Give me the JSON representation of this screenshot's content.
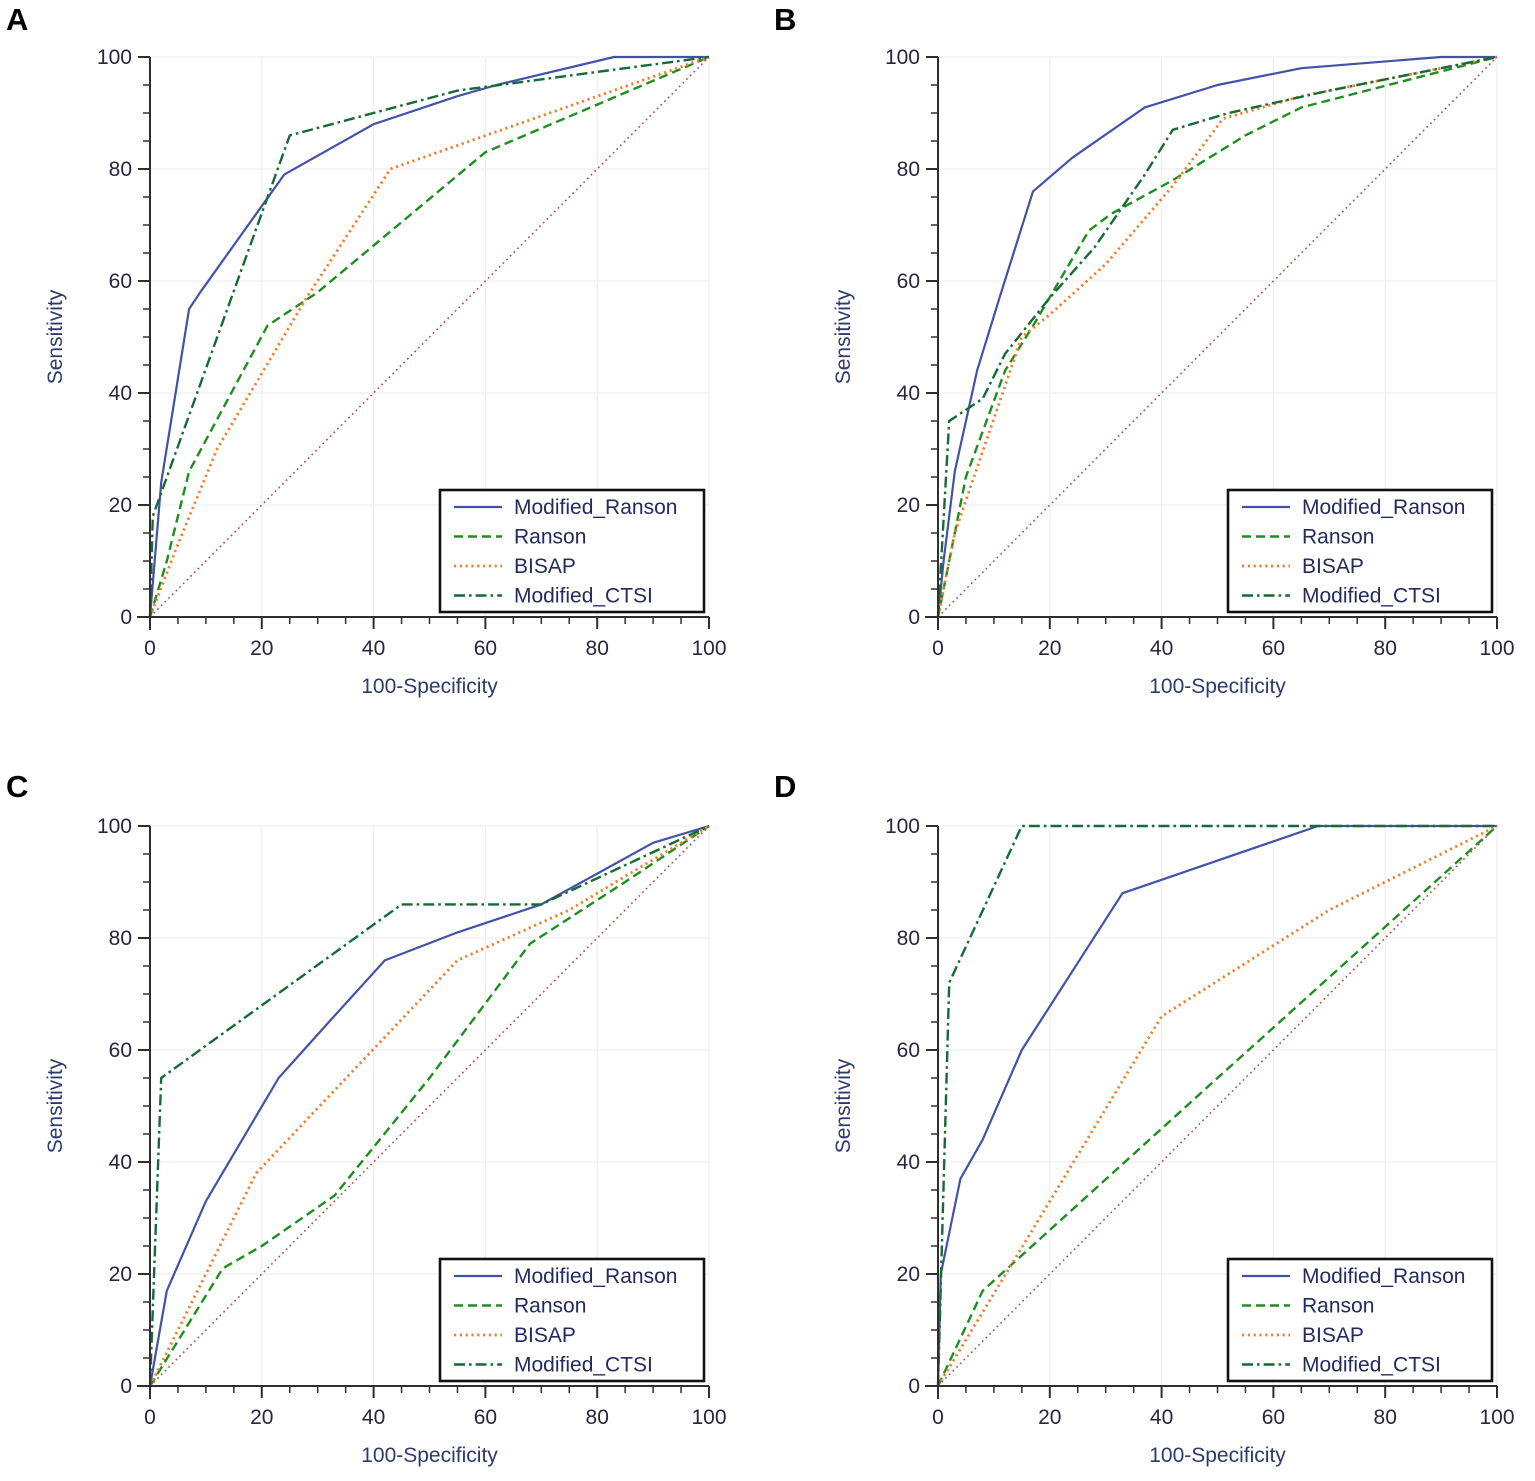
{
  "figure": {
    "description": "Four ROC curve panels comparing scoring systems",
    "background": "#ffffff"
  },
  "theme": {
    "axis_color": "#2f2f2f",
    "grid_color": "#efeef0",
    "tick_label_color": "#26263f",
    "axis_title_color": "#2e3a6e",
    "legend_text_color": "#232a5e",
    "legend_border_color": "#111111",
    "panel_label_color": "#000000",
    "modified_ranson_color": "#4252a8",
    "ranson_color": "#1e8e1e",
    "bisap_color": "#ef7f30",
    "modified_ctsi_color": "#156b33",
    "reference_color": "#ad5656"
  },
  "legend": {
    "items": [
      {
        "label": "Modified_Ranson",
        "style": "solid",
        "color": "#4252a8"
      },
      {
        "label": "Ranson",
        "style": "dashed",
        "color": "#1e8e1e"
      },
      {
        "label": "BISAP",
        "style": "dotted",
        "color": "#ef7f30"
      },
      {
        "label": "Modified_CTSI",
        "style": "dashdot",
        "color": "#156b33"
      }
    ]
  },
  "chart_data": [
    {
      "panel_label": "A",
      "type": "line",
      "xlabel": "100-Specificity",
      "ylabel": "Sensitivity",
      "xlim": [
        0,
        100
      ],
      "ylim": [
        0,
        100
      ],
      "x_major_ticks": [
        0,
        20,
        40,
        60,
        80,
        100
      ],
      "y_major_ticks": [
        0,
        20,
        40,
        60,
        80,
        100
      ],
      "minor_tick_step": 5,
      "grid": true,
      "legend_position": "lower-right",
      "series": [
        {
          "name": "Modified_Ranson",
          "style": "solid",
          "color": "#4252a8",
          "points": [
            [
              0,
              0
            ],
            [
              2,
              24
            ],
            [
              7,
              55
            ],
            [
              9,
              58
            ],
            [
              24,
              79
            ],
            [
              40,
              88
            ],
            [
              55,
              93
            ],
            [
              62,
              95
            ],
            [
              83,
              100
            ],
            [
              100,
              100
            ]
          ]
        },
        {
          "name": "Ranson",
          "style": "dashed",
          "color": "#1e8e1e",
          "points": [
            [
              0,
              0
            ],
            [
              3,
              10
            ],
            [
              7,
              26
            ],
            [
              21,
              52
            ],
            [
              30,
              58
            ],
            [
              60,
              83
            ],
            [
              100,
              100
            ]
          ]
        },
        {
          "name": "BISAP",
          "style": "dotted",
          "color": "#ef7f30",
          "points": [
            [
              0,
              0
            ],
            [
              5,
              13
            ],
            [
              12,
              30
            ],
            [
              28,
              57
            ],
            [
              43,
              80
            ],
            [
              100,
              100
            ]
          ]
        },
        {
          "name": "Modified_CTSI",
          "style": "dashdot",
          "color": "#156b33",
          "points": [
            [
              0,
              0
            ],
            [
              0.5,
              18
            ],
            [
              25,
              86
            ],
            [
              55,
              94
            ],
            [
              100,
              100
            ]
          ]
        },
        {
          "name": "reference",
          "style": "ref",
          "color": "#ad5656",
          "in_legend": false,
          "points": [
            [
              0,
              0
            ],
            [
              100,
              100
            ]
          ]
        }
      ]
    },
    {
      "panel_label": "B",
      "type": "line",
      "xlabel": "100-Specificity",
      "ylabel": "Sensitivity",
      "xlim": [
        0,
        100
      ],
      "ylim": [
        0,
        100
      ],
      "x_major_ticks": [
        0,
        20,
        40,
        60,
        80,
        100
      ],
      "y_major_ticks": [
        0,
        20,
        40,
        60,
        80,
        100
      ],
      "minor_tick_step": 5,
      "grid": true,
      "legend_position": "lower-right",
      "series": [
        {
          "name": "Modified_Ranson",
          "style": "solid",
          "color": "#4252a8",
          "points": [
            [
              0,
              0
            ],
            [
              1,
              10
            ],
            [
              3,
              26
            ],
            [
              7,
              44
            ],
            [
              11,
              57
            ],
            [
              17,
              76
            ],
            [
              24,
              82
            ],
            [
              37,
              91
            ],
            [
              50,
              95
            ],
            [
              65,
              98
            ],
            [
              90,
              100
            ],
            [
              100,
              100
            ]
          ]
        },
        {
          "name": "Ranson",
          "style": "dashed",
          "color": "#1e8e1e",
          "points": [
            [
              0,
              0
            ],
            [
              2,
              10
            ],
            [
              5,
              25
            ],
            [
              12,
              44
            ],
            [
              17,
              52
            ],
            [
              27,
              69
            ],
            [
              31,
              72
            ],
            [
              42,
              78
            ],
            [
              55,
              86
            ],
            [
              65,
              91
            ],
            [
              100,
              100
            ]
          ]
        },
        {
          "name": "BISAP",
          "style": "dotted",
          "color": "#ef7f30",
          "points": [
            [
              0,
              0
            ],
            [
              3,
              15
            ],
            [
              15,
              50
            ],
            [
              20,
              54
            ],
            [
              30,
              63
            ],
            [
              42,
              77
            ],
            [
              51,
              89
            ],
            [
              65,
              93
            ],
            [
              100,
              100
            ]
          ]
        },
        {
          "name": "Modified_CTSI",
          "style": "dashdot",
          "color": "#156b33",
          "points": [
            [
              0,
              0
            ],
            [
              2,
              35
            ],
            [
              8,
              39
            ],
            [
              12,
              47
            ],
            [
              20,
              57
            ],
            [
              28,
              66
            ],
            [
              37,
              79
            ],
            [
              42,
              87
            ],
            [
              52,
              90
            ],
            [
              70,
              94
            ],
            [
              100,
              100
            ]
          ]
        },
        {
          "name": "reference",
          "style": "ref",
          "color": "#ad5656",
          "in_legend": false,
          "points": [
            [
              0,
              0
            ],
            [
              100,
              100
            ]
          ]
        }
      ]
    },
    {
      "panel_label": "C",
      "type": "line",
      "xlabel": "100-Specificity",
      "ylabel": "Sensitivity",
      "xlim": [
        0,
        100
      ],
      "ylim": [
        0,
        100
      ],
      "x_major_ticks": [
        0,
        20,
        40,
        60,
        80,
        100
      ],
      "y_major_ticks": [
        0,
        20,
        40,
        60,
        80,
        100
      ],
      "minor_tick_step": 5,
      "grid": true,
      "legend_position": "lower-right",
      "series": [
        {
          "name": "Modified_Ranson",
          "style": "solid",
          "color": "#4252a8",
          "points": [
            [
              0,
              0
            ],
            [
              3,
              17
            ],
            [
              10,
              33
            ],
            [
              23,
              55
            ],
            [
              32,
              65
            ],
            [
              42,
              76
            ],
            [
              55,
              81
            ],
            [
              70,
              86
            ],
            [
              90,
              97
            ],
            [
              100,
              100
            ]
          ]
        },
        {
          "name": "Ranson",
          "style": "dashed",
          "color": "#1e8e1e",
          "points": [
            [
              0,
              0
            ],
            [
              13,
              21
            ],
            [
              20,
              25
            ],
            [
              33,
              34
            ],
            [
              50,
              55
            ],
            [
              68,
              79
            ],
            [
              85,
              90
            ],
            [
              100,
              100
            ]
          ]
        },
        {
          "name": "BISAP",
          "style": "dotted",
          "color": "#ef7f30",
          "points": [
            [
              0,
              0
            ],
            [
              19,
              38
            ],
            [
              37,
              57
            ],
            [
              55,
              76
            ],
            [
              75,
              85
            ],
            [
              100,
              100
            ]
          ]
        },
        {
          "name": "Modified_CTSI",
          "style": "dashdot",
          "color": "#156b33",
          "points": [
            [
              0,
              0
            ],
            [
              2,
              55
            ],
            [
              45,
              86
            ],
            [
              70,
              86
            ],
            [
              100,
              100
            ]
          ]
        },
        {
          "name": "reference",
          "style": "ref",
          "color": "#ad5656",
          "in_legend": false,
          "points": [
            [
              0,
              0
            ],
            [
              100,
              100
            ]
          ]
        }
      ]
    },
    {
      "panel_label": "D",
      "type": "line",
      "xlabel": "100-Specificity",
      "ylabel": "Sensitivity",
      "xlim": [
        0,
        100
      ],
      "ylim": [
        0,
        100
      ],
      "x_major_ticks": [
        0,
        20,
        40,
        60,
        80,
        100
      ],
      "y_major_ticks": [
        0,
        20,
        40,
        60,
        80,
        100
      ],
      "minor_tick_step": 5,
      "grid": true,
      "legend_position": "lower-right",
      "series": [
        {
          "name": "Modified_Ranson",
          "style": "solid",
          "color": "#4252a8",
          "points": [
            [
              0,
              0
            ],
            [
              0.5,
              20
            ],
            [
              4,
              37
            ],
            [
              8,
              44
            ],
            [
              15,
              60
            ],
            [
              33,
              88
            ],
            [
              68,
              100
            ],
            [
              100,
              100
            ]
          ]
        },
        {
          "name": "Ranson",
          "style": "dashed",
          "color": "#1e8e1e",
          "points": [
            [
              0,
              0
            ],
            [
              8,
              17
            ],
            [
              50,
              55
            ],
            [
              100,
              100
            ]
          ]
        },
        {
          "name": "BISAP",
          "style": "dotted",
          "color": "#ef7f30",
          "points": [
            [
              0,
              0
            ],
            [
              20,
              33
            ],
            [
              40,
              66
            ],
            [
              70,
              85
            ],
            [
              100,
              100
            ]
          ]
        },
        {
          "name": "Modified_CTSI",
          "style": "dashdot",
          "color": "#156b33",
          "points": [
            [
              0,
              0
            ],
            [
              2,
              72
            ],
            [
              15,
              100
            ],
            [
              100,
              100
            ]
          ]
        },
        {
          "name": "reference",
          "style": "ref",
          "color": "#ad5656",
          "in_legend": false,
          "points": [
            [
              0,
              0
            ],
            [
              100,
              100
            ]
          ]
        }
      ]
    }
  ]
}
